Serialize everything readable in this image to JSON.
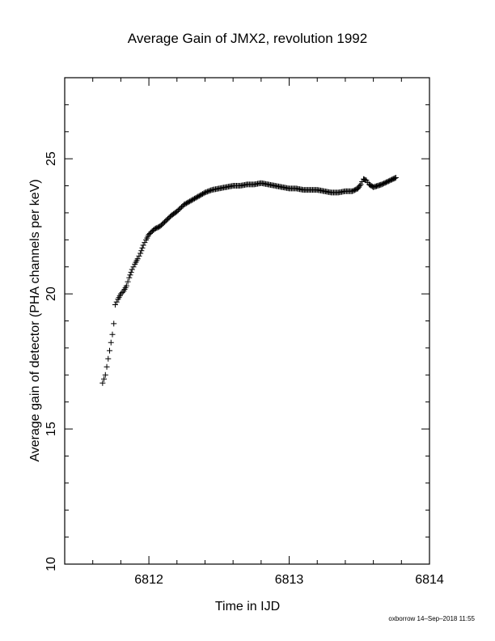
{
  "chart_data": {
    "type": "scatter",
    "title": "Average Gain of JMX2, revolution 1992",
    "xlabel": "Time in IJD",
    "ylabel": "Average gain of detector (PHA channels per keV)",
    "xlim": [
      6811.4,
      6814.0
    ],
    "ylim": [
      10,
      28
    ],
    "xticks": [
      6812,
      6813,
      6814
    ],
    "yticks": [
      10,
      15,
      20,
      25
    ],
    "xminor_step": 0.2,
    "yminor_step": 1,
    "marker": "plus",
    "grid": false,
    "series": [
      {
        "points": [
          [
            6811.67,
            16.7
          ],
          [
            6811.69,
            17.0
          ],
          [
            6811.7,
            17.3
          ],
          [
            6811.71,
            17.6
          ],
          [
            6811.72,
            17.9
          ],
          [
            6811.73,
            18.2
          ],
          [
            6811.74,
            18.5
          ],
          [
            6811.75,
            18.9
          ],
          [
            6811.76,
            19.6
          ],
          [
            6811.78,
            19.8
          ],
          [
            6811.8,
            20.0
          ],
          [
            6811.82,
            20.1
          ],
          [
            6811.84,
            20.3
          ],
          [
            6811.86,
            20.6
          ],
          [
            6811.88,
            20.9
          ],
          [
            6811.9,
            21.1
          ],
          [
            6811.92,
            21.3
          ],
          [
            6811.94,
            21.5
          ],
          [
            6811.96,
            21.8
          ],
          [
            6811.98,
            22.0
          ],
          [
            6812.0,
            22.2
          ],
          [
            6812.04,
            22.4
          ],
          [
            6812.08,
            22.5
          ],
          [
            6812.12,
            22.7
          ],
          [
            6812.16,
            22.9
          ],
          [
            6812.2,
            23.05
          ],
          [
            6812.25,
            23.3
          ],
          [
            6812.3,
            23.45
          ],
          [
            6812.35,
            23.6
          ],
          [
            6812.4,
            23.75
          ],
          [
            6812.45,
            23.85
          ],
          [
            6812.5,
            23.9
          ],
          [
            6812.55,
            23.95
          ],
          [
            6812.6,
            24.0
          ],
          [
            6812.65,
            24.0
          ],
          [
            6812.7,
            24.05
          ],
          [
            6812.75,
            24.05
          ],
          [
            6812.8,
            24.1
          ],
          [
            6812.85,
            24.05
          ],
          [
            6812.9,
            24.0
          ],
          [
            6812.95,
            23.95
          ],
          [
            6813.0,
            23.9
          ],
          [
            6813.05,
            23.9
          ],
          [
            6813.1,
            23.85
          ],
          [
            6813.15,
            23.85
          ],
          [
            6813.2,
            23.85
          ],
          [
            6813.25,
            23.8
          ],
          [
            6813.3,
            23.75
          ],
          [
            6813.35,
            23.75
          ],
          [
            6813.4,
            23.8
          ],
          [
            6813.45,
            23.8
          ],
          [
            6813.49,
            23.9
          ],
          [
            6813.51,
            24.05
          ],
          [
            6813.53,
            24.25
          ],
          [
            6813.55,
            24.2
          ],
          [
            6813.57,
            24.05
          ],
          [
            6813.6,
            23.95
          ],
          [
            6813.63,
            24.0
          ],
          [
            6813.66,
            24.05
          ],
          [
            6813.7,
            24.15
          ],
          [
            6813.74,
            24.25
          ],
          [
            6813.76,
            24.3
          ]
        ]
      }
    ]
  },
  "footer": "oxborrow 14–Sep–2018 11:55"
}
